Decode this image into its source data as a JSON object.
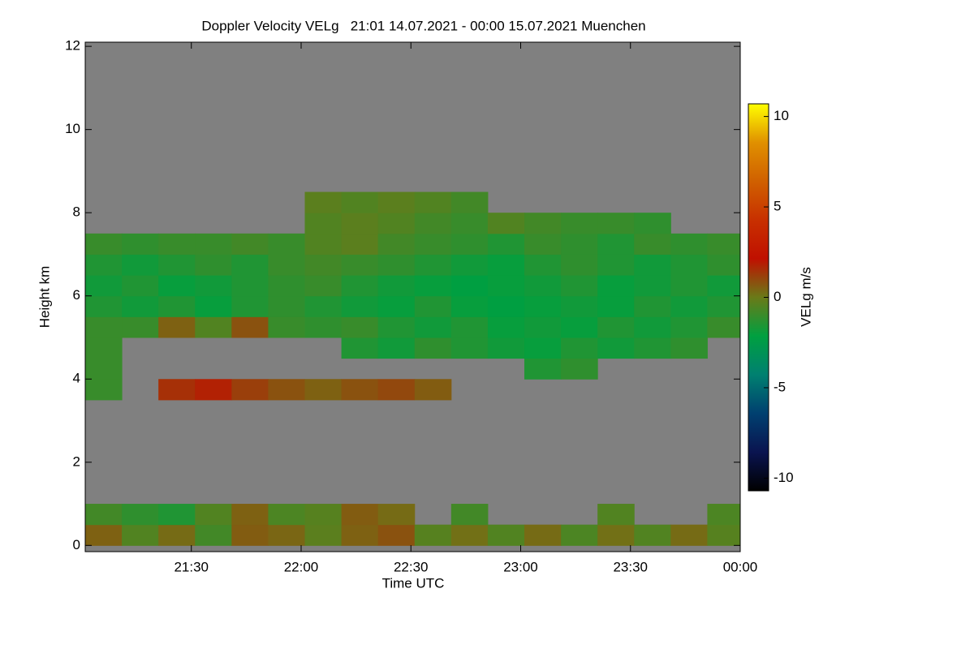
{
  "chart_data": {
    "type": "heatmap",
    "title": "Doppler Velocity VELg   21:01 14.07.2021 - 00:00 15.07.2021 Muenchen",
    "x_label": "Time UTC",
    "y_label": "Height km",
    "colorbar_label": "VELg m/s",
    "xlim": [
      1261,
      1440
    ],
    "xticks": [
      {
        "value": 1290,
        "label": "21:30"
      },
      {
        "value": 1320,
        "label": "22:00"
      },
      {
        "value": 1350,
        "label": "22:30"
      },
      {
        "value": 1380,
        "label": "23:00"
      },
      {
        "value": 1410,
        "label": "23:30"
      },
      {
        "value": 1440,
        "label": "00:00"
      }
    ],
    "ylim": [
      -0.15,
      12.1
    ],
    "yticks": [
      0,
      2,
      4,
      6,
      8,
      10,
      12
    ],
    "zlim": [
      -10.7,
      10.7
    ],
    "zticks": [
      -10,
      -5,
      0,
      5,
      10
    ],
    "colormap": [
      "#000000",
      "#0a1450",
      "#004070",
      "#008070",
      "#00a040",
      "#6a7a18",
      "#c01000",
      "#c83000",
      "#d06000",
      "#e09000",
      "#ffff00"
    ],
    "missing_color": "#808080",
    "x": [
      1261,
      1271,
      1281,
      1291,
      1301,
      1311,
      1321,
      1331,
      1341,
      1351,
      1361,
      1371,
      1381,
      1391,
      1401,
      1411,
      1421,
      1431
    ],
    "y": [
      0,
      0.5,
      1,
      1.5,
      2,
      2.5,
      3,
      3.5,
      4,
      4.5,
      5,
      5.5,
      6,
      6.5,
      7,
      7.5,
      8,
      8.5,
      9,
      9.5,
      10,
      10.5,
      11,
      11.5
    ],
    "z": [
      [
        0.5,
        -0.5,
        0.3,
        -0.8,
        0.6,
        0.4,
        -0.3,
        0.5,
        0.8,
        -0.4,
        0.2,
        -0.5,
        0.3,
        -0.6,
        0.2,
        -0.5,
        0.3,
        -0.4
      ],
      [
        -0.8,
        -1.2,
        -1.5,
        -0.5,
        0.5,
        -0.6,
        -0.4,
        0.6,
        0.3,
        null,
        -0.8,
        null,
        null,
        null,
        -0.5,
        null,
        null,
        -0.6
      ],
      [
        null,
        null,
        null,
        null,
        null,
        null,
        null,
        null,
        null,
        null,
        null,
        null,
        null,
        null,
        null,
        null,
        null,
        null
      ],
      [
        null,
        null,
        null,
        null,
        null,
        null,
        null,
        null,
        null,
        null,
        null,
        null,
        null,
        null,
        null,
        null,
        null,
        null
      ],
      [
        null,
        null,
        null,
        null,
        null,
        null,
        null,
        null,
        null,
        null,
        null,
        null,
        null,
        null,
        null,
        null,
        null,
        null
      ],
      [
        null,
        null,
        null,
        null,
        null,
        null,
        null,
        null,
        null,
        null,
        null,
        null,
        null,
        null,
        null,
        null,
        null,
        null
      ],
      [
        null,
        null,
        null,
        null,
        null,
        null,
        null,
        null,
        null,
        null,
        null,
        null,
        null,
        null,
        null,
        null,
        null,
        null
      ],
      [
        -1,
        null,
        1.5,
        1.8,
        1.2,
        0.8,
        0.5,
        0.8,
        1,
        0.6,
        null,
        null,
        null,
        null,
        null,
        null,
        null,
        null
      ],
      [
        -1,
        null,
        null,
        null,
        null,
        null,
        null,
        null,
        null,
        null,
        null,
        null,
        -1.5,
        -1.2,
        null,
        null,
        null,
        null
      ],
      [
        -1,
        null,
        null,
        null,
        null,
        null,
        null,
        -1.5,
        -1.8,
        -1.2,
        -1.5,
        -1.8,
        -2,
        -1.5,
        -1.8,
        -1.5,
        -1.2,
        null
      ],
      [
        -1,
        -1,
        0.5,
        -0.5,
        0.8,
        -1,
        -1.2,
        -1,
        -1.5,
        -1.8,
        -1.5,
        -2,
        -1.8,
        -2,
        -1.5,
        -1.8,
        -1.5,
        -1
      ],
      [
        -1.5,
        -1.8,
        -1.5,
        -2,
        -1.5,
        -1.2,
        -1.5,
        -1.8,
        -2,
        -1.5,
        -2,
        -2.2,
        -2,
        -1.8,
        -2,
        -1.5,
        -1.8,
        -1.5
      ],
      [
        -1.8,
        -1.5,
        -2,
        -1.8,
        -1.5,
        -1.2,
        -1,
        -1.5,
        -1.8,
        -2,
        -2.2,
        -2,
        -1.8,
        -1.5,
        -2,
        -1.8,
        -1.5,
        -1.8
      ],
      [
        -1.5,
        -1.8,
        -1.5,
        -1.2,
        -1.5,
        -1,
        -0.8,
        -1,
        -1.2,
        -1.5,
        -1.8,
        -2,
        -1.5,
        -1.2,
        -1.5,
        -1.8,
        -1.5,
        -1.2
      ],
      [
        -1,
        -1.2,
        -1,
        -1,
        -0.8,
        -1,
        -0.5,
        -0.3,
        -0.8,
        -1,
        -1.2,
        -1.5,
        -1,
        -1.2,
        -1.5,
        -1,
        -1.2,
        -1
      ],
      [
        null,
        null,
        null,
        null,
        null,
        null,
        -0.5,
        -0.3,
        -0.5,
        -0.8,
        -1,
        -0.5,
        -0.8,
        -1,
        -1,
        -1.2,
        null,
        null
      ],
      [
        null,
        null,
        null,
        null,
        null,
        null,
        -0.3,
        -0.5,
        -0.3,
        -0.5,
        -0.8,
        null,
        null,
        null,
        null,
        null,
        null,
        null
      ],
      [
        null,
        null,
        null,
        null,
        null,
        null,
        null,
        null,
        null,
        null,
        null,
        null,
        null,
        null,
        null,
        null,
        null,
        null
      ],
      [
        null,
        null,
        null,
        null,
        null,
        null,
        null,
        null,
        null,
        null,
        null,
        null,
        null,
        null,
        null,
        null,
        null,
        null
      ],
      [
        null,
        null,
        null,
        null,
        null,
        null,
        null,
        null,
        null,
        null,
        null,
        null,
        null,
        null,
        null,
        null,
        null,
        null
      ],
      [
        null,
        null,
        null,
        null,
        null,
        null,
        null,
        null,
        null,
        null,
        null,
        null,
        null,
        null,
        null,
        null,
        null,
        null
      ],
      [
        null,
        null,
        null,
        null,
        null,
        null,
        null,
        null,
        null,
        null,
        null,
        null,
        null,
        null,
        null,
        null,
        null,
        null
      ],
      [
        null,
        null,
        null,
        null,
        null,
        null,
        null,
        null,
        null,
        null,
        null,
        null,
        null,
        null,
        null,
        null,
        null,
        null
      ],
      [
        null,
        null,
        null,
        null,
        null,
        null,
        null,
        null,
        null,
        null,
        null,
        null,
        null,
        null,
        null,
        null,
        null,
        null
      ]
    ]
  }
}
